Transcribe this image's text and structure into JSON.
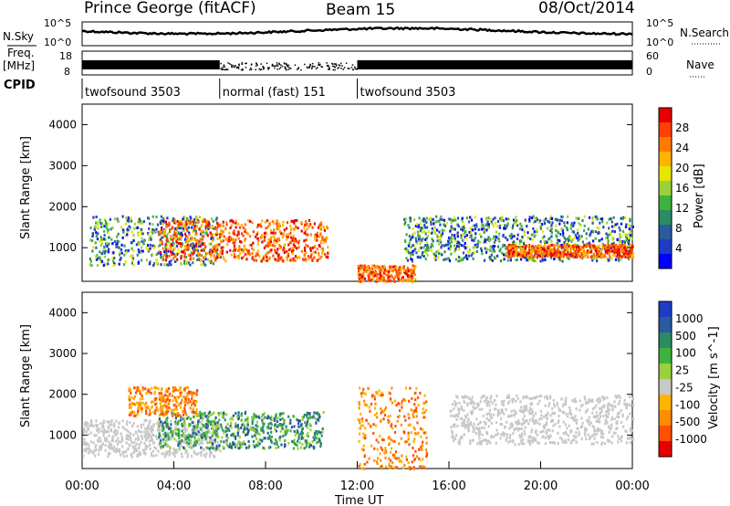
{
  "header": {
    "station": "Prince George (fitACF)",
    "beam": "Beam 15",
    "date": "08/Oct/2014"
  },
  "left_labels": {
    "nsky": "N.Sky",
    "freq": "Freq.",
    "freq_unit": "[MHz]",
    "cpid": "CPID"
  },
  "right_labels": {
    "nsearch": "N.Search",
    "nave": "Nave"
  },
  "panel_ticks": {
    "noise_left": [
      "10^5",
      "10^0"
    ],
    "noise_right": [
      "10^5",
      "10^0"
    ],
    "freq_left": [
      "18",
      "8"
    ],
    "freq_right": [
      "60",
      "0"
    ]
  },
  "cpid_segments": [
    {
      "label": "twofsound 3503",
      "start": 0,
      "end": 6
    },
    {
      "label": "normal (fast) 151",
      "start": 6,
      "end": 12
    },
    {
      "label": "twofsound 3503",
      "start": 12,
      "end": 24
    }
  ],
  "chart_data": [
    {
      "type": "heatmap",
      "quantity": "power",
      "ylabel": "Slant Range [km]",
      "yticks": [
        "4000",
        "3000",
        "2000",
        "1000"
      ],
      "ylim": [
        180,
        4500
      ],
      "xlim": [
        0,
        24
      ],
      "colorbar": {
        "label": "Power [dB]",
        "ticks": [
          "28",
          "24",
          "20",
          "16",
          "12",
          "8",
          "4"
        ],
        "colors": [
          "#e60000",
          "#ff4000",
          "#ff7a00",
          "#ffb400",
          "#e6e600",
          "#9ad23c",
          "#3cb43c",
          "#2a8c64",
          "#2a5aa0",
          "#1e3cc8",
          "#0000ff"
        ]
      },
      "regions": [
        {
          "t0": 0.3,
          "t1": 6.0,
          "r0": 600,
          "r1": 1800,
          "level": "mid"
        },
        {
          "t0": 3.3,
          "t1": 10.7,
          "r0": 700,
          "r1": 1700,
          "level": "high"
        },
        {
          "t0": 12.0,
          "t1": 14.5,
          "r0": 200,
          "r1": 600,
          "level": "high"
        },
        {
          "t0": 14.0,
          "t1": 24.0,
          "r0": 700,
          "r1": 1800,
          "level": "mid"
        },
        {
          "t0": 18.5,
          "t1": 24.0,
          "r0": 800,
          "r1": 1100,
          "level": "high"
        }
      ]
    },
    {
      "type": "heatmap",
      "quantity": "velocity",
      "ylabel": "Slant Range [km]",
      "yticks": [
        "4000",
        "3000",
        "2000",
        "1000"
      ],
      "ylim": [
        180,
        4500
      ],
      "xlim": [
        0,
        24
      ],
      "xticks": [
        "00:00",
        "04:00",
        "08:00",
        "12:00",
        "16:00",
        "20:00",
        "00:00"
      ],
      "xlabel": "Time UT",
      "colorbar": {
        "label": "Velocity [m s^-1]",
        "ticks": [
          "1000",
          "500",
          "100",
          "25",
          "-25",
          "-100",
          "-500",
          "-1000"
        ],
        "colors": [
          "#1e3cc8",
          "#2a5aa0",
          "#2a8c64",
          "#3cb43c",
          "#9ad23c",
          "#c8c8c8",
          "#ffb400",
          "#ff8c00",
          "#ff5000",
          "#e60000"
        ]
      },
      "regions": [
        {
          "t0": 0.0,
          "t1": 6.0,
          "r0": 500,
          "r1": 1400,
          "level": "gray"
        },
        {
          "t0": 3.3,
          "t1": 10.5,
          "r0": 700,
          "r1": 1600,
          "level": "green"
        },
        {
          "t0": 2.0,
          "t1": 5.0,
          "r0": 1500,
          "r1": 2200,
          "level": "orange"
        },
        {
          "t0": 12.0,
          "t1": 15.0,
          "r0": 200,
          "r1": 2200,
          "level": "orange"
        },
        {
          "t0": 16.0,
          "t1": 24.0,
          "r0": 800,
          "r1": 2000,
          "level": "gray"
        }
      ]
    }
  ]
}
